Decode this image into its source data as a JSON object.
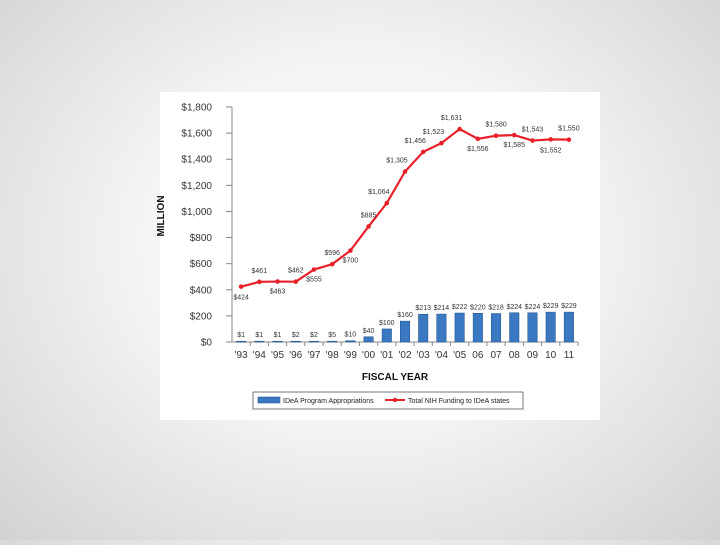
{
  "chart_data": {
    "type": "bar+line",
    "title": "",
    "xlabel": "FISCAL YEAR",
    "ylabel": "MILLION",
    "ylim": [
      0,
      1800
    ],
    "y_ticks": [
      "$0",
      "$200",
      "$400",
      "$600",
      "$800",
      "$1,000",
      "$1,200",
      "$1,400",
      "$1,600",
      "$1,800"
    ],
    "y_tick_values": [
      0,
      200,
      400,
      600,
      800,
      1000,
      1200,
      1400,
      1600,
      1800
    ],
    "categories": [
      "'93",
      "'94",
      "'95",
      "'96",
      "'97",
      "'98",
      "'99",
      "'00",
      "'01",
      "'02",
      "'03",
      "'04",
      "'05",
      "06",
      "07",
      "08",
      "09",
      "10",
      "11"
    ],
    "series": [
      {
        "name": "IDeA Program Appropriations",
        "type": "bar",
        "color": "#3a78c2",
        "values": [
          1,
          1,
          1,
          2,
          2,
          5,
          10,
          40,
          100,
          160,
          213,
          214,
          222,
          220,
          218,
          224,
          224,
          229,
          229
        ],
        "labels": [
          "$1",
          "$1",
          "$1",
          "$2",
          "$2",
          "$5",
          "$10",
          "$40",
          "$100",
          "$160",
          "$213",
          "$214",
          "$222",
          "$220",
          "$218",
          "$224",
          "$224",
          "$229",
          "$229"
        ]
      },
      {
        "name": "Total NIH Funding to IDeA states",
        "type": "line",
        "color": "#e8202a",
        "values": [
          424,
          461,
          463,
          462,
          555,
          596,
          700,
          885,
          1064,
          1305,
          1456,
          1523,
          1631,
          1556,
          1580,
          1585,
          1543,
          1552,
          1550
        ],
        "labels": [
          "$424",
          "$461",
          "$463",
          "$462",
          "$555",
          "$596",
          "$700",
          "$885",
          "$1,064",
          "$1,305",
          "$1,456",
          "$1,523",
          "$1,631",
          "$1,556",
          "$1,580",
          "$1,585",
          "$1,543",
          "$1,552",
          "$1,550"
        ]
      }
    ],
    "legend_position": "bottom",
    "grid": false
  }
}
